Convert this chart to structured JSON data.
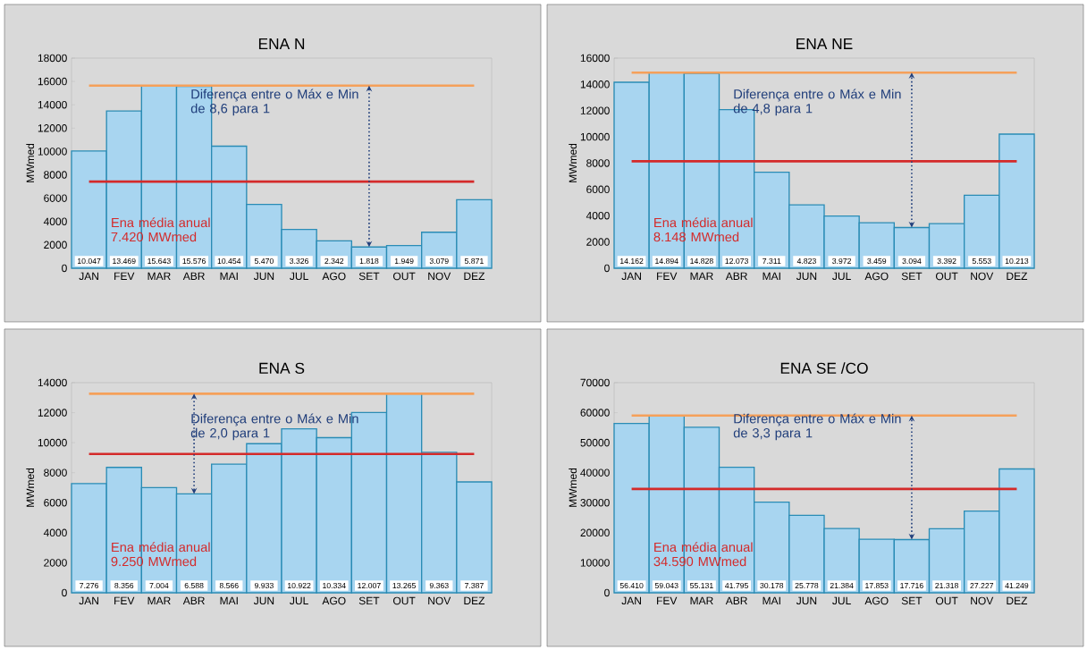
{
  "chart_data": [
    {
      "type": "bar",
      "title": "ENA N",
      "ylabel": "MWmed",
      "categories": [
        "JAN",
        "FEV",
        "MAR",
        "ABR",
        "MAI",
        "JUN",
        "JUL",
        "AGO",
        "SET",
        "OUT",
        "NOV",
        "DEZ"
      ],
      "values": [
        10047,
        13469,
        15643,
        15576,
        10454,
        5470,
        3326,
        2342,
        1818,
        1949,
        3079,
        5871
      ],
      "value_labels": [
        "10.047",
        "13.469",
        "15.643",
        "15.576",
        "10.454",
        "5.470",
        "3.326",
        "2.342",
        "1.818",
        "1.949",
        "3.079",
        "5.871"
      ],
      "color": "#a8d5f0",
      "ylim": [
        0,
        18000
      ],
      "yticks": [
        0,
        2000,
        4000,
        6000,
        8000,
        10000,
        12000,
        14000,
        16000,
        18000
      ],
      "ref_lines": [
        {
          "axis": "y",
          "value": 15643,
          "color": "#f5a05a"
        },
        {
          "axis": "y",
          "value": 7420,
          "label": "Ena média anual 7.420 MWmed",
          "color": "#d42a2a"
        }
      ],
      "annotations": [
        "Diferença entre o Máx e Min de 8,6 para 1"
      ]
    },
    {
      "type": "bar",
      "title": "ENA NE",
      "ylabel": "MWmed",
      "categories": [
        "JAN",
        "FEV",
        "MAR",
        "ABR",
        "MAI",
        "JUN",
        "JUL",
        "AGO",
        "SET",
        "OUT",
        "NOV",
        "DEZ"
      ],
      "values": [
        14162,
        14894,
        14828,
        12073,
        7311,
        4823,
        3972,
        3459,
        3094,
        3392,
        5553,
        10213
      ],
      "value_labels": [
        "14.162",
        "14.894",
        "14.828",
        "12.073",
        "7.311",
        "4.823",
        "3.972",
        "3.459",
        "3.094",
        "3.392",
        "5.553",
        "10.213"
      ],
      "color": "#a8d5f0",
      "ylim": [
        0,
        16000
      ],
      "yticks": [
        0,
        2000,
        4000,
        6000,
        8000,
        10000,
        12000,
        14000,
        16000
      ],
      "ref_lines": [
        {
          "axis": "y",
          "value": 14894,
          "color": "#f5a05a"
        },
        {
          "axis": "y",
          "value": 8148,
          "label": "Ena média anual 8.148 MWmed",
          "color": "#d42a2a"
        }
      ],
      "annotations": [
        "Diferença entre o Máx e Min de 4,8 para 1"
      ]
    },
    {
      "type": "bar",
      "title": "ENA S",
      "ylabel": "MWmed",
      "categories": [
        "JAN",
        "FEV",
        "MAR",
        "ABR",
        "MAI",
        "JUN",
        "JUL",
        "AGO",
        "SET",
        "OUT",
        "NOV",
        "DEZ"
      ],
      "values": [
        7276,
        8356,
        7004,
        6588,
        8566,
        9933,
        10922,
        10334,
        12007,
        13265,
        9363,
        7387
      ],
      "value_labels": [
        "7.276",
        "8.356",
        "7.004",
        "6.588",
        "8.566",
        "9.933",
        "10.922",
        "10.334",
        "12.007",
        "13.265",
        "9.363",
        "7.387"
      ],
      "color": "#a8d5f0",
      "ylim": [
        0,
        14000
      ],
      "yticks": [
        0,
        2000,
        4000,
        6000,
        8000,
        10000,
        12000,
        14000
      ],
      "ref_lines": [
        {
          "axis": "y",
          "value": 13265,
          "color": "#f5a05a"
        },
        {
          "axis": "y",
          "value": 9250,
          "label": "Ena média anual 9.250 MWmed",
          "color": "#d42a2a"
        }
      ],
      "annotations": [
        "Diferença entre o Máx e Min de 2,0 para 1"
      ]
    },
    {
      "type": "bar",
      "title": "ENA SE /CO",
      "ylabel": "MWmed",
      "categories": [
        "JAN",
        "FEV",
        "MAR",
        "ABR",
        "MAI",
        "JUN",
        "JUL",
        "AGO",
        "SET",
        "OUT",
        "NOV",
        "DEZ"
      ],
      "values": [
        56410,
        59043,
        55131,
        41795,
        30178,
        25778,
        21384,
        17853,
        17716,
        21318,
        27227,
        41249
      ],
      "value_labels": [
        "56.410",
        "59.043",
        "55.131",
        "41.795",
        "30.178",
        "25.778",
        "21.384",
        "17.853",
        "17.716",
        "21.318",
        "27.227",
        "41.249"
      ],
      "color": "#a8d5f0",
      "ylim": [
        0,
        70000
      ],
      "yticks": [
        0,
        10000,
        20000,
        30000,
        40000,
        50000,
        60000,
        70000
      ],
      "ref_lines": [
        {
          "axis": "y",
          "value": 59043,
          "color": "#f5a05a"
        },
        {
          "axis": "y",
          "value": 34590,
          "label": "Ena média anual 34.590 MWmed",
          "color": "#d42a2a"
        }
      ],
      "annotations": [
        "Diferença entre o Máx e Min de 3,3 para 1"
      ]
    }
  ]
}
